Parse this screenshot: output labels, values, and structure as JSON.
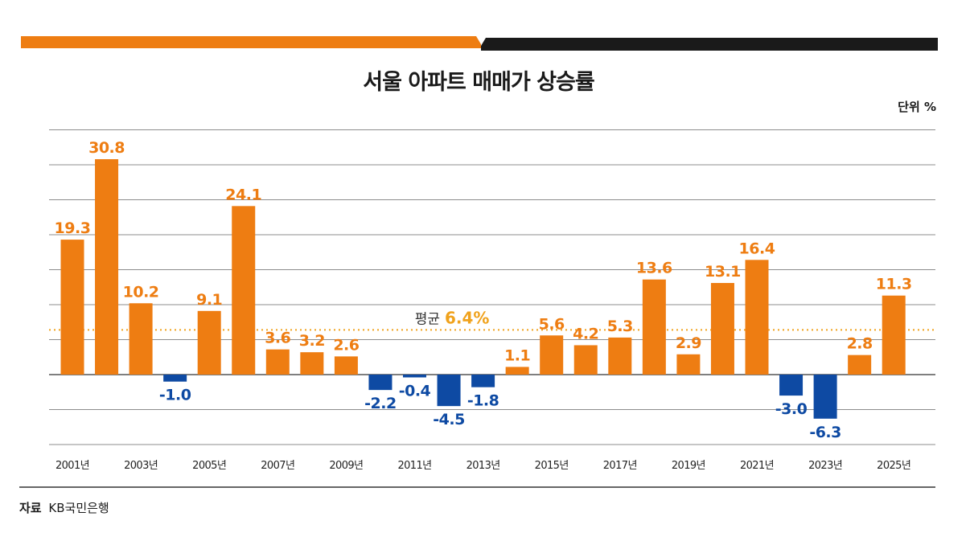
{
  "title": "서울 아파트 매매가 상승률",
  "unit": "단위 %",
  "source": {
    "label": "자료",
    "name": "KB국민은행"
  },
  "colors": {
    "positive": "#ee7d12",
    "negative": "#0e4aa3",
    "average": "#f0a21c",
    "grid": "#8c8c8c",
    "header_orange": "#ee7d12",
    "header_dark": "#1a1a1a"
  },
  "chart_data": {
    "type": "bar",
    "title": "서울 아파트 매매가 상승률",
    "ylabel": "",
    "unit": "%",
    "categories": [
      "2001",
      "2002",
      "2003",
      "2004",
      "2005",
      "2006",
      "2007",
      "2008",
      "2009",
      "2010",
      "2011",
      "2012",
      "2013",
      "2014",
      "2015",
      "2016",
      "2017",
      "2018",
      "2019",
      "2020",
      "2021",
      "2022",
      "2023",
      "2024",
      "2025"
    ],
    "values": [
      19.3,
      30.8,
      10.2,
      -1.0,
      9.1,
      24.1,
      3.6,
      3.2,
      2.6,
      -2.2,
      -0.4,
      -4.5,
      -1.8,
      1.1,
      5.6,
      4.2,
      5.3,
      13.6,
      2.9,
      13.1,
      16.4,
      -3.0,
      -6.3,
      2.8,
      11.3
    ],
    "value_labels": [
      "19.3",
      "30.8",
      "10.2",
      "-1.0",
      "9.1",
      "24.1",
      "3.6",
      "3.2",
      "2.6",
      "-2.2",
      "-0.4",
      "-4.5",
      "-1.8",
      "1.1",
      "5.6",
      "4.2",
      "5.3",
      "13.6",
      "2.9",
      "13.1",
      "16.4",
      "-3.0",
      "-6.3",
      "2.8",
      "11.3"
    ],
    "tick_labels": [
      "2001년",
      "2003년",
      "2005년",
      "2007년",
      "2009년",
      "2011년",
      "2013년",
      "2015년",
      "2017년",
      "2019년",
      "2021년",
      "2023년",
      "2025년"
    ],
    "average": {
      "label": "평균",
      "value": 6.4,
      "text": "6.4%"
    },
    "ylim": [
      -10,
      35
    ],
    "grid": true
  }
}
